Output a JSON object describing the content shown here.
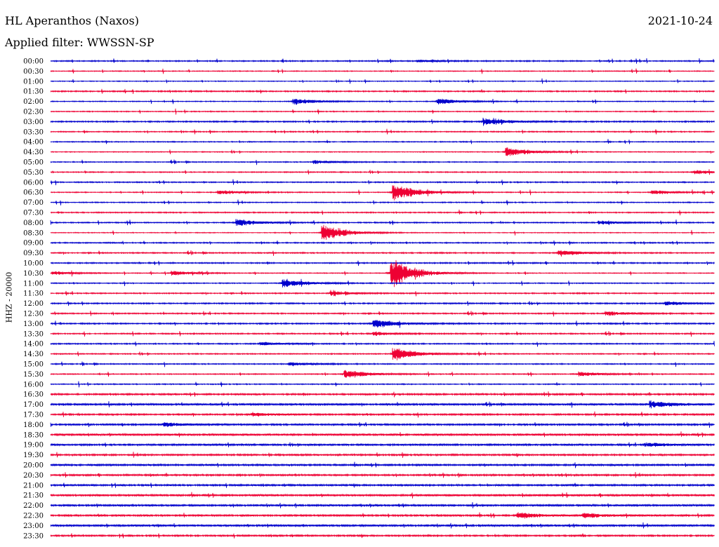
{
  "header": {
    "station": "HL Aperanthos (Naxos)",
    "date": "2021-10-24",
    "filter": "Applied filter: WWSSN-SP"
  },
  "chart_data": {
    "type": "line",
    "title": "HL Aperanthos (Naxos)",
    "ylabel": "HHZ - 20000",
    "xlabel": "",
    "rows": [
      "00:00",
      "00:30",
      "01:00",
      "01:30",
      "02:00",
      "02:30",
      "03:00",
      "03:30",
      "04:00",
      "04:30",
      "05:00",
      "05:30",
      "06:00",
      "06:30",
      "07:00",
      "07:30",
      "08:00",
      "08:30",
      "09:00",
      "09:30",
      "10:00",
      "10:30",
      "11:00",
      "11:30",
      "12:00",
      "12:30",
      "13:00",
      "13:30",
      "14:00",
      "14:30",
      "15:00",
      "15:30",
      "16:00",
      "16:30",
      "17:00",
      "17:30",
      "18:00",
      "18:30",
      "19:00",
      "19:30",
      "20:00",
      "20:30",
      "21:00",
      "21:30",
      "22:00",
      "22:30",
      "23:00",
      "23:30"
    ],
    "row_minutes": 30,
    "colors": [
      "#0000cc",
      "#ee0033"
    ],
    "events": [
      {
        "row": "10:30",
        "minute": 15.5,
        "amplitude": 1.0
      },
      {
        "row": "06:30",
        "minute": 15.6,
        "amplitude": 0.6
      },
      {
        "row": "08:30",
        "minute": 12.4,
        "amplitude": 0.55
      },
      {
        "row": "14:30",
        "minute": 15.6,
        "amplitude": 0.45
      },
      {
        "row": "15:30",
        "minute": 13.4,
        "amplitude": 0.3
      },
      {
        "row": "11:00",
        "minute": 10.6,
        "amplitude": 0.3
      },
      {
        "row": "04:30",
        "minute": 20.7,
        "amplitude": 0.35
      },
      {
        "row": "08:00",
        "minute": 8.5,
        "amplitude": 0.25
      },
      {
        "row": "13:00",
        "minute": 14.7,
        "amplitude": 0.3
      },
      {
        "row": "03:00",
        "minute": 19.7,
        "amplitude": 0.25
      },
      {
        "row": "02:00",
        "minute": 11.1,
        "amplitude": 0.2
      },
      {
        "row": "02:00",
        "minute": 17.6,
        "amplitude": 0.2
      },
      {
        "row": "17:00",
        "minute": 27.2,
        "amplitude": 0.22
      },
      {
        "row": "22:30",
        "minute": 21.2,
        "amplitude": 0.2
      },
      {
        "row": "22:30",
        "minute": 24.2,
        "amplitude": 0.15
      },
      {
        "row": "09:30",
        "minute": 23.1,
        "amplitude": 0.2
      },
      {
        "row": "12:30",
        "minute": 25.2,
        "amplitude": 0.15
      },
      {
        "row": "13:30",
        "minute": 14.7,
        "amplitude": 0.12
      },
      {
        "row": "05:30",
        "minute": 29.2,
        "amplitude": 0.12
      },
      {
        "row": "06:30",
        "minute": 27.3,
        "amplitude": 0.15
      },
      {
        "row": "06:30",
        "minute": 7.7,
        "amplitude": 0.15
      },
      {
        "row": "10:30",
        "minute": 5.6,
        "amplitude": 0.15
      },
      {
        "row": "10:30",
        "minute": 0.2,
        "amplitude": 0.12
      },
      {
        "row": "17:30",
        "minute": 9.2,
        "amplitude": 0.12
      },
      {
        "row": "18:00",
        "minute": 5.2,
        "amplitude": 0.12
      },
      {
        "row": "19:00",
        "minute": 27.0,
        "amplitude": 0.12
      },
      {
        "row": "15:30",
        "minute": 24.0,
        "amplitude": 0.15
      },
      {
        "row": "08:00",
        "minute": 24.9,
        "amplitude": 0.12
      },
      {
        "row": "11:30",
        "minute": 12.8,
        "amplitude": 0.12
      },
      {
        "row": "05:00",
        "minute": 12.0,
        "amplitude": 0.12
      },
      {
        "row": "14:00",
        "minute": 9.6,
        "amplitude": 0.12
      },
      {
        "row": "15:00",
        "minute": 10.9,
        "amplitude": 0.12
      },
      {
        "row": "12:00",
        "minute": 27.9,
        "amplitude": 0.12
      },
      {
        "row": "00:00",
        "minute": 16.7,
        "amplitude": 0.08
      }
    ]
  }
}
